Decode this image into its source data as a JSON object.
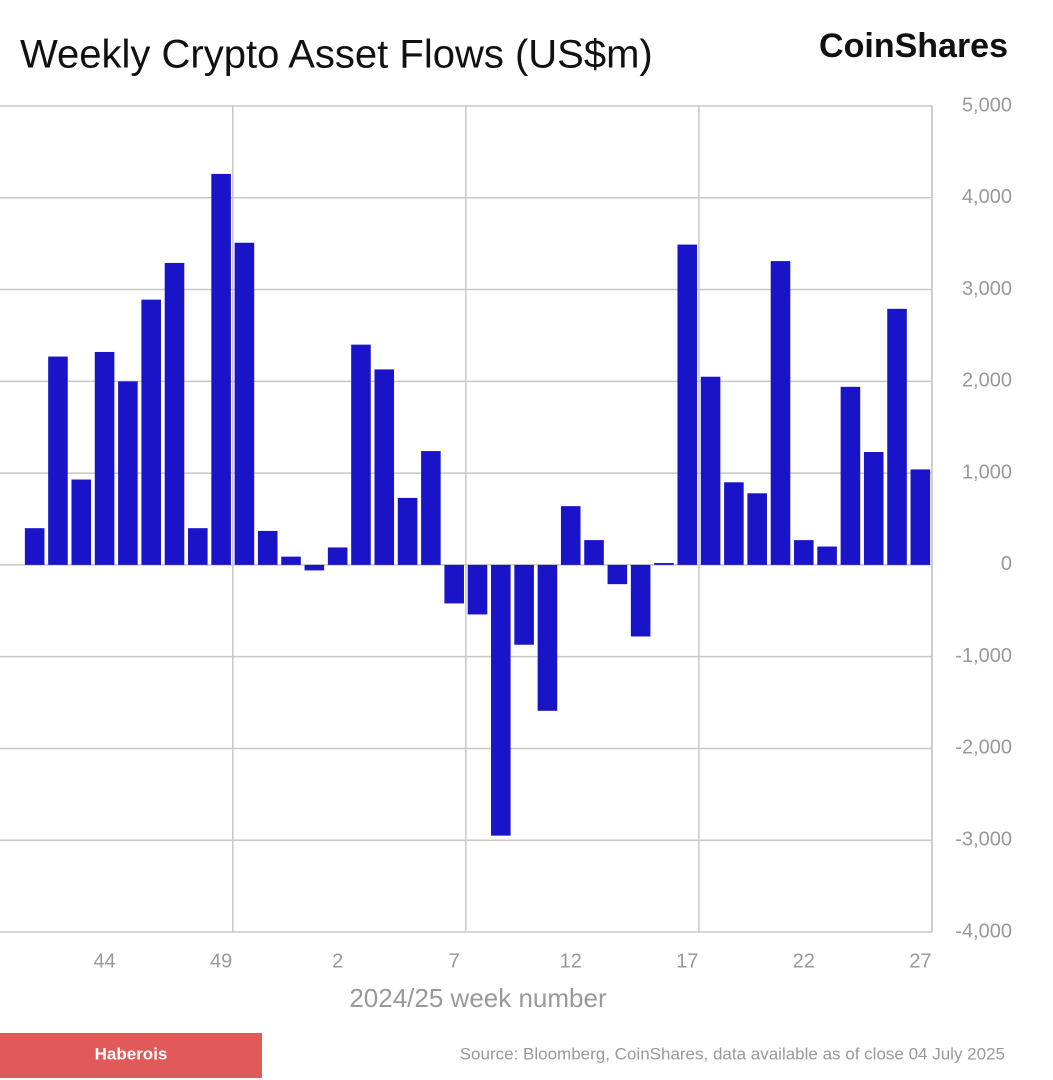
{
  "chart_data": {
    "type": "bar",
    "title": "Weekly Crypto Asset Flows (US$m)",
    "brand": "CoinShares",
    "x_label": "2024/25 week number",
    "source": "Source: Bloomberg, CoinShares, data available as of close 04 July 2025",
    "watermark": "Haberois",
    "categories": [
      null,
      null,
      null,
      "44",
      null,
      null,
      null,
      null,
      "49",
      null,
      null,
      null,
      null,
      "2",
      null,
      null,
      null,
      null,
      "7",
      null,
      null,
      null,
      null,
      "12",
      null,
      null,
      null,
      null,
      "17",
      null,
      null,
      null,
      null,
      "22",
      null,
      null,
      null,
      null,
      "27"
    ],
    "values": [
      400,
      2270,
      930,
      2320,
      2000,
      2890,
      3290,
      400,
      4260,
      3510,
      370,
      90,
      -60,
      190,
      2400,
      2130,
      730,
      1240,
      -420,
      -540,
      -2950,
      -870,
      -1590,
      640,
      270,
      -210,
      -780,
      20,
      3490,
      2050,
      900,
      780,
      3310,
      270,
      200,
      1940,
      1230,
      2790,
      1040
    ],
    "color": "#1a14c8",
    "ylim": [
      -4000,
      5000
    ],
    "yticks": [
      {
        "value": -4000,
        "label": "-4,000"
      },
      {
        "value": -3000,
        "label": "-3,000"
      },
      {
        "value": -2000,
        "label": "-2,000"
      },
      {
        "value": -1000,
        "label": "-1,000"
      },
      0,
      {
        "value": 1000,
        "label": "1,000"
      },
      {
        "value": 2000,
        "label": "2,000"
      },
      {
        "value": 3000,
        "label": "3,000"
      },
      {
        "value": 4000,
        "label": "4,000"
      },
      {
        "value": 5000,
        "label": "5,000"
      }
    ],
    "grid": true
  }
}
